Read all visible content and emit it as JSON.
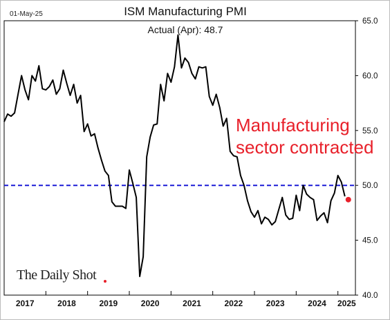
{
  "date_stamp": "01-May-25",
  "chart_data": {
    "type": "line",
    "title": "ISM Manufacturing PMI",
    "subtitle": "Actual (Apr):  48.7",
    "annotation": {
      "lines": [
        "Manufacturing",
        "sector contracted"
      ],
      "color": "#e8202a"
    },
    "reference_line": {
      "value": 50,
      "style": "dashed",
      "color": "#1a1ad6"
    },
    "y_axis": {
      "side": "right",
      "ylim": [
        40,
        65
      ],
      "ticks": [
        "40.0",
        "45.0",
        "50.0",
        "55.0",
        "60.0",
        "65.0"
      ]
    },
    "x_axis": {
      "xlim": [
        2017.0,
        2025.42
      ],
      "ticks": [
        "2017",
        "2018",
        "2019",
        "2020",
        "2021",
        "2022",
        "2023",
        "2024",
        "2025"
      ]
    },
    "series": [
      {
        "color": "#000000",
        "x": [
          2017.0,
          2017.083,
          2017.167,
          2017.25,
          2017.333,
          2017.417,
          2017.5,
          2017.583,
          2017.667,
          2017.75,
          2017.833,
          2017.917,
          2018.0,
          2018.083,
          2018.167,
          2018.25,
          2018.333,
          2018.417,
          2018.5,
          2018.583,
          2018.667,
          2018.75,
          2018.833,
          2018.917,
          2019.0,
          2019.083,
          2019.167,
          2019.25,
          2019.333,
          2019.417,
          2019.5,
          2019.583,
          2019.667,
          2019.75,
          2019.833,
          2019.917,
          2020.0,
          2020.083,
          2020.167,
          2020.25,
          2020.333,
          2020.417,
          2020.5,
          2020.583,
          2020.667,
          2020.75,
          2020.833,
          2020.917,
          2021.0,
          2021.083,
          2021.167,
          2021.25,
          2021.333,
          2021.417,
          2021.5,
          2021.583,
          2021.667,
          2021.75,
          2021.833,
          2021.917,
          2022.0,
          2022.083,
          2022.167,
          2022.25,
          2022.333,
          2022.417,
          2022.5,
          2022.583,
          2022.667,
          2022.75,
          2022.833,
          2022.917,
          2023.0,
          2023.083,
          2023.167,
          2023.25,
          2023.333,
          2023.417,
          2023.5,
          2023.583,
          2023.667,
          2023.75,
          2023.833,
          2023.917,
          2024.0,
          2024.083,
          2024.167,
          2024.25,
          2024.333,
          2024.417,
          2024.5,
          2024.583,
          2024.667,
          2024.75,
          2024.833,
          2024.917,
          2025.0,
          2025.083,
          2025.167
        ],
        "values": [
          55.8,
          56.5,
          56.3,
          56.6,
          58.3,
          60.0,
          58.7,
          57.8,
          60.0,
          59.5,
          60.9,
          58.8,
          58.7,
          59.0,
          59.6,
          58.3,
          58.8,
          60.5,
          59.3,
          58.2,
          59.2,
          57.5,
          58.2,
          54.9,
          55.6,
          54.5,
          54.7,
          53.4,
          52.3,
          51.3,
          50.9,
          48.5,
          48.1,
          48.1,
          48.1,
          47.9,
          51.4,
          50.2,
          48.9,
          41.7,
          43.5,
          52.6,
          54.4,
          55.5,
          55.6,
          59.2,
          57.7,
          60.2,
          59.4,
          60.8,
          63.7,
          60.7,
          61.6,
          61.2,
          60.2,
          59.7,
          60.8,
          60.7,
          60.8,
          58.1,
          57.3,
          58.3,
          57.1,
          55.4,
          56.1,
          53.1,
          52.7,
          52.6,
          50.9,
          50.0,
          48.6,
          47.6,
          47.1,
          47.7,
          46.5,
          47.1,
          46.9,
          46.4,
          46.7,
          47.8,
          48.9,
          47.3,
          46.9,
          47.0,
          49.1,
          47.7,
          50.0,
          49.2,
          48.9,
          48.7,
          46.8,
          47.2,
          47.5,
          46.6,
          48.6,
          49.3,
          50.9,
          50.3,
          49.0
        ]
      }
    ],
    "last_point": {
      "x": 2025.25,
      "value": 48.7,
      "color": "#e8202a"
    }
  },
  "watermark": "The Daily Shot"
}
